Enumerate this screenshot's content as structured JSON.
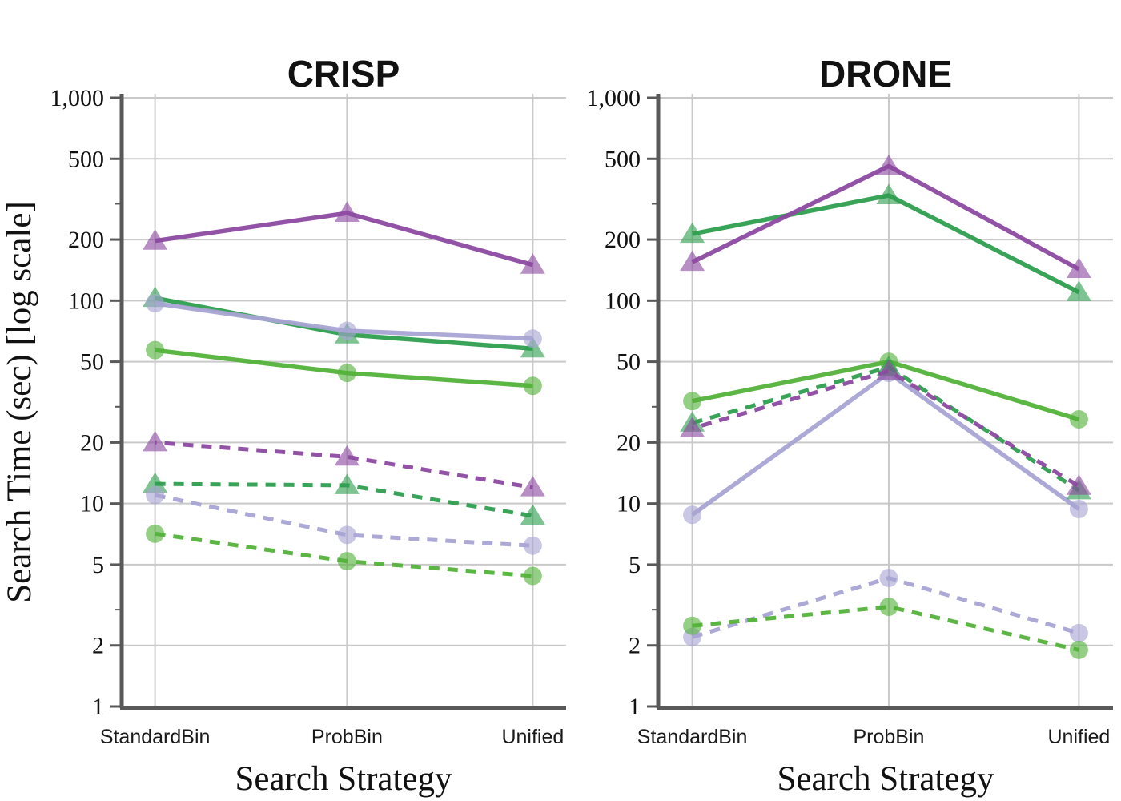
{
  "figure": {
    "ylabel": "Search Time (sec) [log scale]",
    "xlabel": "Search Strategy"
  },
  "colors": {
    "purple": "#8c4aa1",
    "green_dark": "#2e9e4f",
    "green_bright": "#53b23a",
    "lavender": "#a8a4d4",
    "gridline": "#c9c9c9",
    "axis_spine": "#595959",
    "text": "#111111"
  },
  "chart_data": [
    {
      "type": "line",
      "title": "CRISP",
      "xlabel": "Search Strategy",
      "ylabel": "Search Time (sec) [log scale]",
      "yscale": "log",
      "ylim": [
        1,
        1000
      ],
      "grid": true,
      "legend": "none",
      "categories": [
        "StandardBin",
        "ProbBin",
        "Unified"
      ],
      "yticks": [
        {
          "value": 1000,
          "label": "1,000"
        },
        {
          "value": 500,
          "label": "500"
        },
        {
          "value": 200,
          "label": "200"
        },
        {
          "value": 100,
          "label": "100"
        },
        {
          "value": 50,
          "label": "50"
        },
        {
          "value": 20,
          "label": "20"
        },
        {
          "value": 10,
          "label": "10"
        },
        {
          "value": 5,
          "label": "5"
        },
        {
          "value": 2,
          "label": "2"
        },
        {
          "value": 1,
          "label": "1"
        }
      ],
      "yticks_minor": [
        300,
        30,
        3
      ],
      "series": [
        {
          "name": "green-triangle-solid",
          "color": "#2e9e4f",
          "marker": "triangle",
          "line": "solid",
          "values": [
            103,
            68,
            58
          ]
        },
        {
          "name": "lavender-circle-solid",
          "color": "#a8a4d4",
          "marker": "circle",
          "line": "solid",
          "values": [
            97,
            71,
            65
          ]
        },
        {
          "name": "purple-triangle-solid",
          "color": "#8c4aa1",
          "marker": "triangle",
          "line": "solid",
          "values": [
            197,
            270,
            150
          ]
        },
        {
          "name": "green-circle-solid",
          "color": "#53b23a",
          "marker": "circle",
          "line": "solid",
          "values": [
            57,
            44,
            38
          ]
        },
        {
          "name": "green-triangle-dashed",
          "color": "#2e9e4f",
          "marker": "triangle",
          "line": "dashed",
          "values": [
            12.5,
            12.3,
            8.7
          ]
        },
        {
          "name": "purple-triangle-dashed",
          "color": "#8c4aa1",
          "marker": "triangle",
          "line": "dashed",
          "values": [
            20,
            17,
            12
          ]
        },
        {
          "name": "lavender-circle-dashed",
          "color": "#a8a4d4",
          "marker": "circle",
          "line": "dashed",
          "values": [
            11,
            7,
            6.2
          ]
        },
        {
          "name": "green-circle-dashed",
          "color": "#53b23a",
          "marker": "circle",
          "line": "dashed",
          "values": [
            7.1,
            5.2,
            4.4
          ]
        }
      ]
    },
    {
      "type": "line",
      "title": "DRONE",
      "xlabel": "Search Strategy",
      "ylabel": "Search Time (sec) [log scale]",
      "yscale": "log",
      "ylim": [
        1,
        1000
      ],
      "grid": true,
      "legend": "none",
      "categories": [
        "StandardBin",
        "ProbBin",
        "Unified"
      ],
      "yticks": [
        {
          "value": 1000,
          "label": "1,000"
        },
        {
          "value": 500,
          "label": "500"
        },
        {
          "value": 200,
          "label": "200"
        },
        {
          "value": 100,
          "label": "100"
        },
        {
          "value": 50,
          "label": "50"
        },
        {
          "value": 20,
          "label": "20"
        },
        {
          "value": 10,
          "label": "10"
        },
        {
          "value": 5,
          "label": "5"
        },
        {
          "value": 2,
          "label": "2"
        },
        {
          "value": 1,
          "label": "1"
        }
      ],
      "yticks_minor": [
        300,
        30,
        3
      ],
      "series": [
        {
          "name": "green-triangle-solid",
          "color": "#2e9e4f",
          "marker": "triangle",
          "line": "solid",
          "values": [
            213,
            330,
            110
          ]
        },
        {
          "name": "lavender-circle-solid",
          "color": "#a8a4d4",
          "marker": "circle",
          "line": "solid",
          "values": [
            8.8,
            44,
            9.4
          ]
        },
        {
          "name": "purple-triangle-solid",
          "color": "#8c4aa1",
          "marker": "triangle",
          "line": "solid",
          "values": [
            155,
            460,
            143
          ]
        },
        {
          "name": "green-circle-solid",
          "color": "#53b23a",
          "marker": "circle",
          "line": "solid",
          "values": [
            32,
            50,
            26
          ]
        },
        {
          "name": "green-triangle-dashed",
          "color": "#2e9e4f",
          "marker": "triangle",
          "line": "dashed",
          "values": [
            25,
            47,
            11.6
          ]
        },
        {
          "name": "purple-triangle-dashed",
          "color": "#8c4aa1",
          "marker": "triangle",
          "line": "dashed",
          "values": [
            23.5,
            45,
            12.2
          ]
        },
        {
          "name": "lavender-circle-dashed",
          "color": "#a8a4d4",
          "marker": "circle",
          "line": "dashed",
          "values": [
            2.2,
            4.3,
            2.3
          ]
        },
        {
          "name": "green-circle-dashed",
          "color": "#53b23a",
          "marker": "circle",
          "line": "dashed",
          "values": [
            2.5,
            3.1,
            1.9
          ]
        }
      ]
    }
  ]
}
